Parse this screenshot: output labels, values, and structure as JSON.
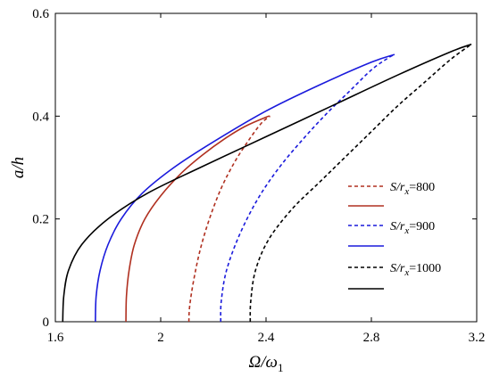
{
  "chart_data": {
    "type": "line",
    "xlabel": "Ω/ω1",
    "xlabel_parts": {
      "main": "Ω/ω",
      "sub": "1"
    },
    "ylabel": "a/h",
    "xlim": [
      1.6,
      3.2
    ],
    "ylim": [
      0,
      0.6
    ],
    "xticks": [
      "1.6",
      "2",
      "2.4",
      "2.8",
      "3.2"
    ],
    "yticks": [
      "0",
      "0.2",
      "0.4",
      "0.6"
    ],
    "xtick_values": [
      1.6,
      2.0,
      2.4,
      2.8,
      3.2
    ],
    "ytick_values": [
      0,
      0.2,
      0.4,
      0.6
    ],
    "grid": false,
    "legend_position": "right",
    "series": [
      {
        "name": "S/rx=800",
        "name_parts": {
          "s": "S/r",
          "sub": "x",
          "value": "=800"
        },
        "color": "#b03020",
        "dash": true,
        "x": [
          2.107,
          2.11,
          2.125,
          2.15,
          2.185,
          2.23,
          2.28,
          2.33,
          2.38,
          2.415
        ],
        "y": [
          0.0,
          0.03,
          0.08,
          0.14,
          0.2,
          0.26,
          0.31,
          0.35,
          0.385,
          0.4
        ]
      },
      {
        "name": "",
        "color": "#b03020",
        "dash": false,
        "x": [
          1.868,
          1.87,
          1.88,
          1.9,
          1.94,
          2.0,
          2.08,
          2.16,
          2.24,
          2.32,
          2.4,
          2.415
        ],
        "y": [
          0.0,
          0.05,
          0.1,
          0.15,
          0.2,
          0.245,
          0.29,
          0.325,
          0.355,
          0.38,
          0.398,
          0.4
        ]
      },
      {
        "name": "S/rx=900",
        "name_parts": {
          "s": "S/r",
          "sub": "x",
          "value": "=900"
        },
        "color": "#1a1adc",
        "dash": true,
        "x": [
          2.228,
          2.23,
          2.25,
          2.3,
          2.37,
          2.45,
          2.54,
          2.63,
          2.72,
          2.8,
          2.86,
          2.888
        ],
        "y": [
          0.0,
          0.04,
          0.1,
          0.17,
          0.24,
          0.3,
          0.355,
          0.405,
          0.45,
          0.49,
          0.512,
          0.52
        ]
      },
      {
        "name": "",
        "color": "#1a1adc",
        "dash": false,
        "x": [
          1.752,
          1.755,
          1.77,
          1.8,
          1.85,
          1.93,
          2.05,
          2.2,
          2.4,
          2.6,
          2.8,
          2.888
        ],
        "y": [
          0.0,
          0.05,
          0.1,
          0.15,
          0.2,
          0.25,
          0.3,
          0.35,
          0.41,
          0.46,
          0.505,
          0.52
        ]
      },
      {
        "name": "S/rx=1000",
        "name_parts": {
          "s": "S/r",
          "sub": "x",
          "value": "=1000"
        },
        "color": "#000000",
        "dash": true,
        "x": [
          2.34,
          2.342,
          2.36,
          2.41,
          2.5,
          2.6,
          2.7,
          2.8,
          2.9,
          3.0,
          3.1,
          3.18
        ],
        "y": [
          0.0,
          0.04,
          0.1,
          0.16,
          0.22,
          0.27,
          0.32,
          0.37,
          0.42,
          0.465,
          0.51,
          0.54
        ]
      },
      {
        "name": "",
        "color": "#000000",
        "dash": false,
        "x": [
          1.628,
          1.632,
          1.65,
          1.7,
          1.8,
          1.95,
          2.15,
          2.4,
          2.65,
          2.9,
          3.1,
          3.18
        ],
        "y": [
          0.0,
          0.05,
          0.1,
          0.15,
          0.2,
          0.25,
          0.3,
          0.36,
          0.42,
          0.48,
          0.525,
          0.54
        ]
      }
    ]
  }
}
